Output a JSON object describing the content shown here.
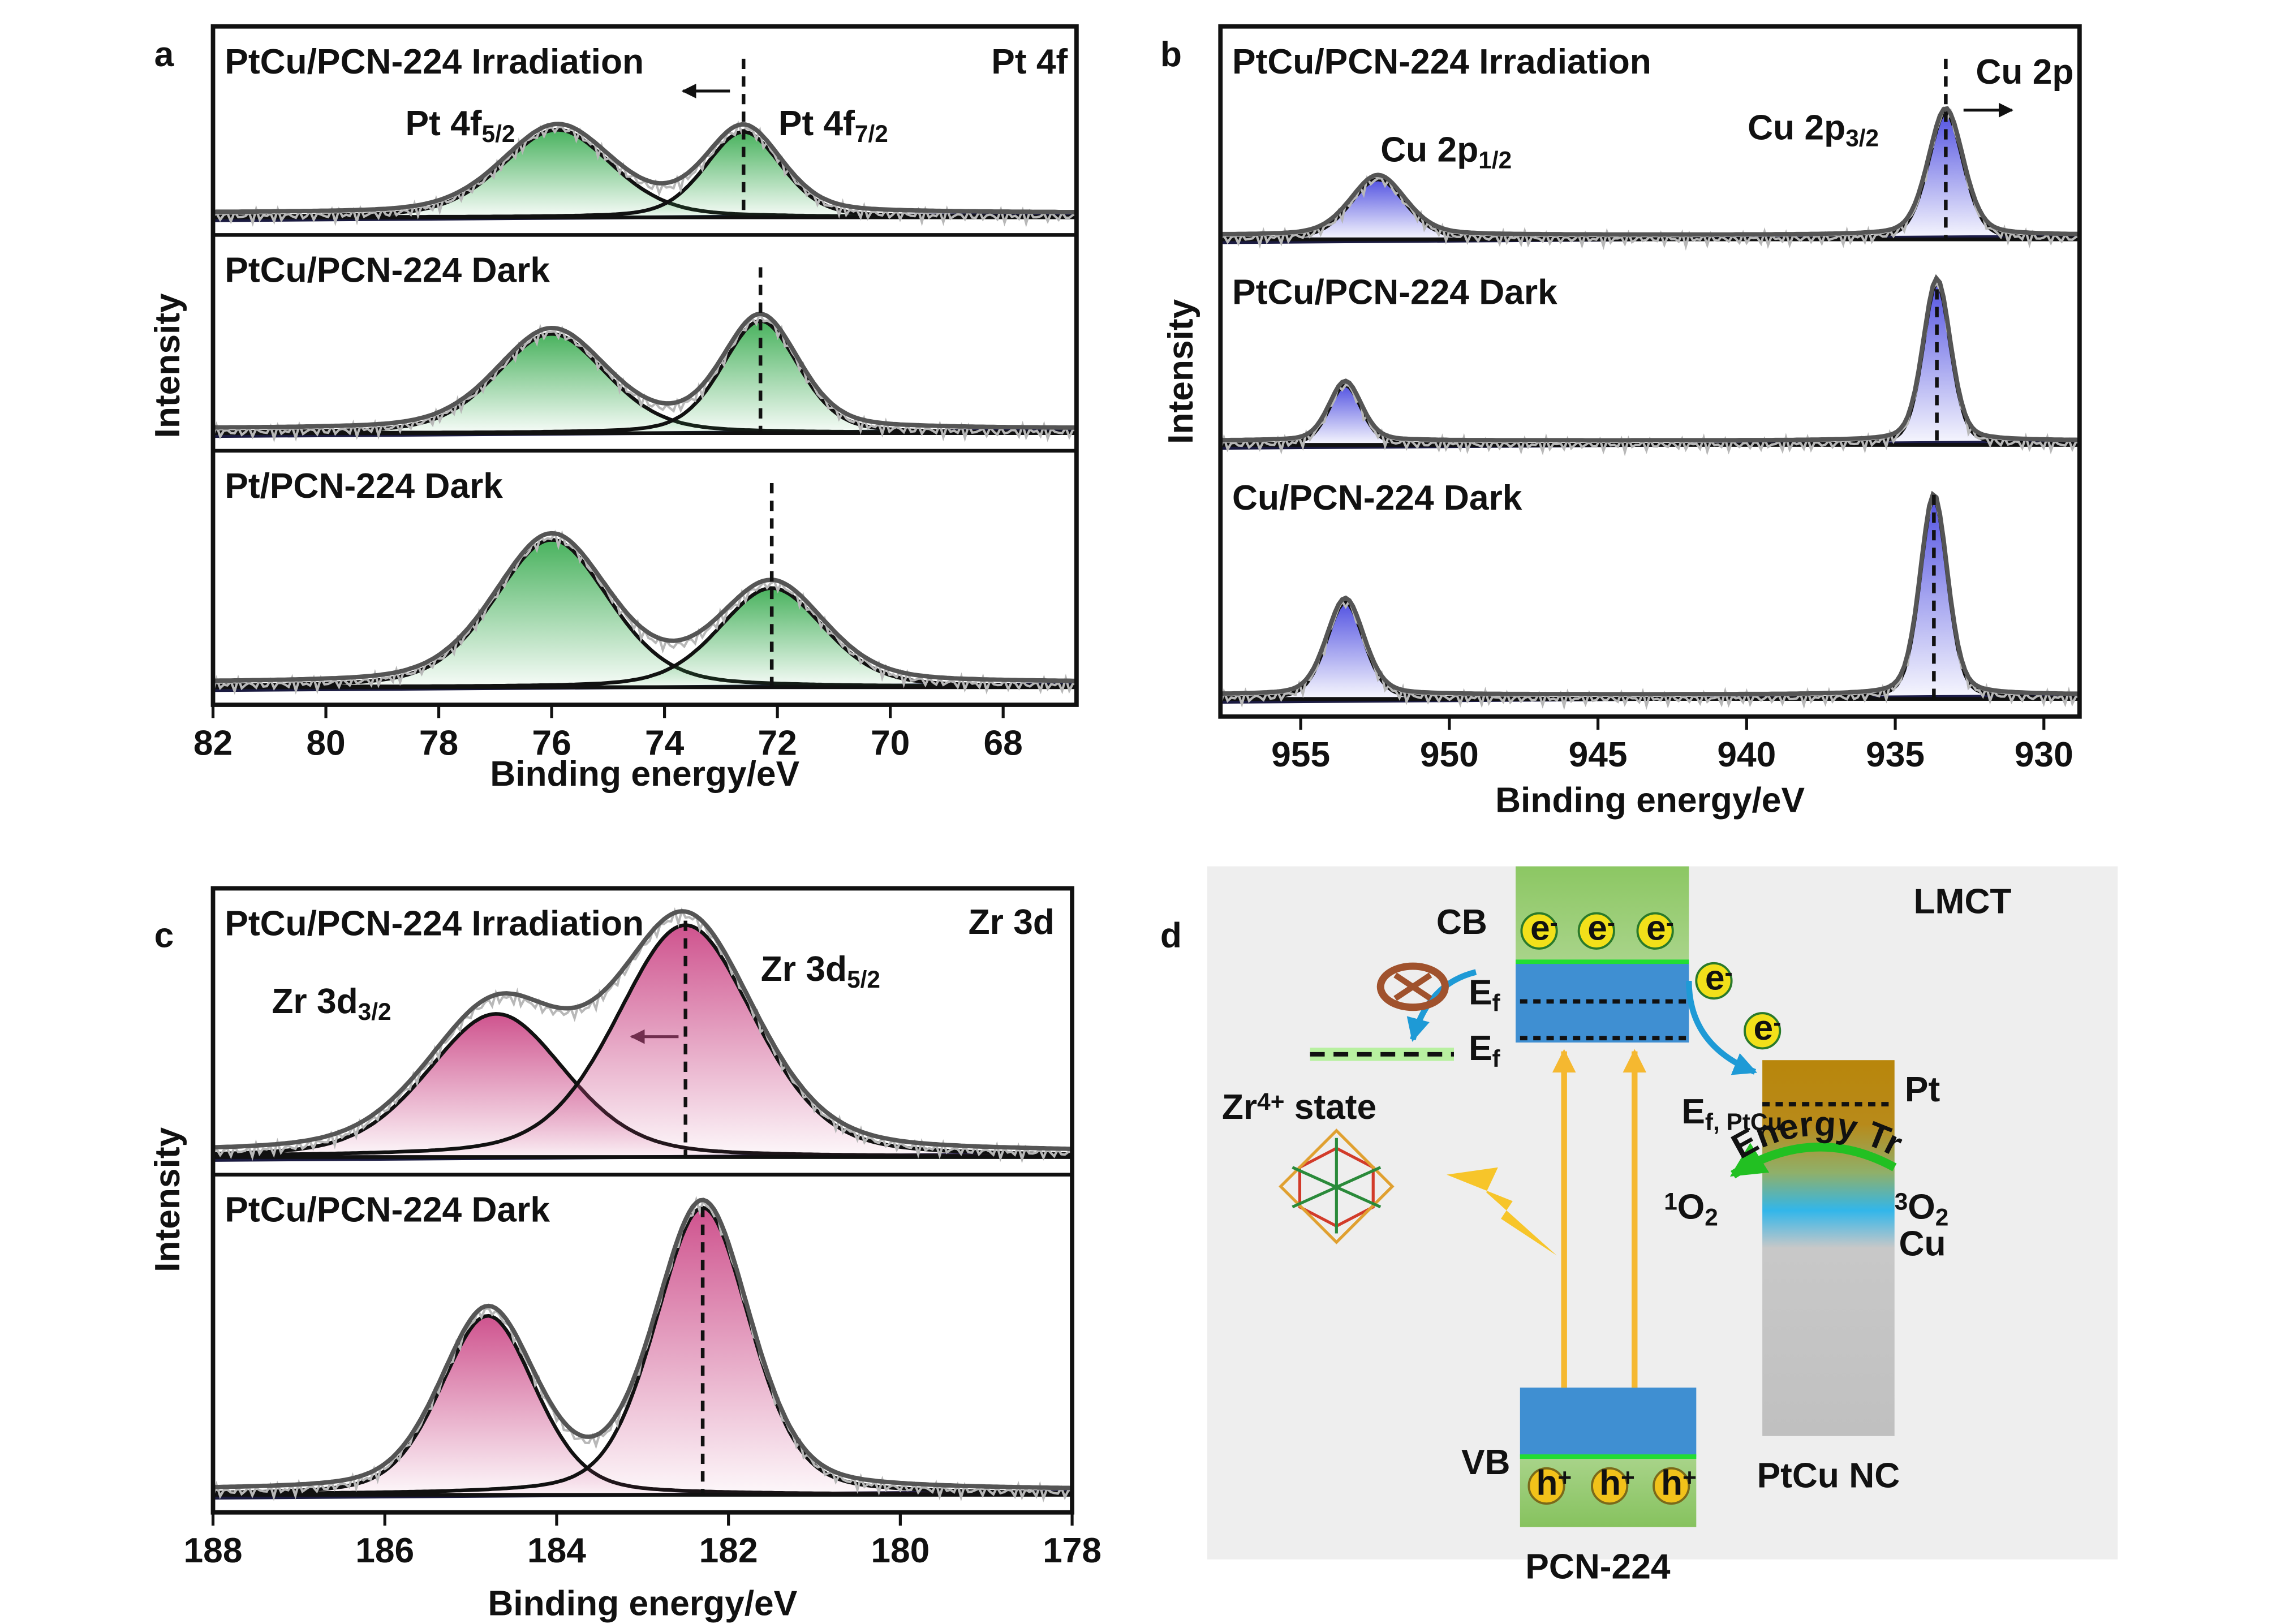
{
  "chart_data": [
    {
      "type": "xps",
      "panel_label": "a",
      "element": "Pt 4f",
      "xlabel": "Binding energy/eV",
      "ylabel": "Intensity",
      "xlim": [
        82,
        66.7
      ],
      "xticks": [
        82,
        80,
        78,
        76,
        74,
        72,
        70,
        68
      ],
      "color": "#3fae55",
      "peak_labels": [
        {
          "text": "Pt 4f",
          "sub": "5/2"
        },
        {
          "text": "Pt 4f",
          "sub": "7/2"
        }
      ],
      "spectra": [
        {
          "label": "PtCu/PCN-224 Irradiation",
          "centers": [
            75.9,
            72.6
          ],
          "heights": [
            0.42,
            0.41
          ],
          "fwhm": [
            2.3,
            1.6
          ]
        },
        {
          "label": "PtCu/PCN-224 Dark",
          "centers": [
            76.0,
            72.3
          ],
          "heights": [
            0.46,
            0.52
          ],
          "fwhm": [
            2.3,
            1.6
          ]
        },
        {
          "label": "Pt/PCN-224 Dark",
          "centers": [
            76.0,
            72.1
          ],
          "heights": [
            0.58,
            0.39
          ],
          "fwhm": [
            2.4,
            2.2
          ]
        }
      ]
    },
    {
      "type": "xps",
      "panel_label": "b",
      "element": "Cu 2p",
      "xlabel": "Binding energy/eV",
      "ylabel": "Intensity",
      "xlim": [
        957.7,
        928.8
      ],
      "xticks": [
        955,
        950,
        945,
        940,
        935,
        930
      ],
      "color": "#4a4ae0",
      "peak_labels": [
        {
          "text": "Cu 2p",
          "sub": "1/2"
        },
        {
          "text": "Cu 2p",
          "sub": "3/2"
        }
      ],
      "spectra": [
        {
          "label": "PtCu/PCN-224 Irradiation",
          "centers": [
            952.4,
            933.3
          ],
          "heights": [
            0.26,
            0.55
          ],
          "fwhm": [
            2.2,
            1.4
          ]
        },
        {
          "label": "PtCu/PCN-224 Dark",
          "centers": [
            953.5,
            933.6
          ],
          "heights": [
            0.29,
            0.79
          ],
          "fwhm": [
            1.3,
            1.1
          ]
        },
        {
          "label": "Cu/PCN-224 Dark",
          "centers": [
            953.5,
            933.7
          ],
          "heights": [
            0.38,
            0.79
          ],
          "fwhm": [
            1.5,
            1.1
          ]
        }
      ]
    },
    {
      "type": "xps",
      "panel_label": "c",
      "element": "Zr 3d",
      "xlabel": "Binding energy/eV",
      "ylabel": "Intensity",
      "xlim": [
        188,
        178
      ],
      "xticks": [
        188,
        186,
        184,
        182,
        180,
        178
      ],
      "color": "#cc4a88",
      "peak_labels": [
        {
          "text": "Zr 3d",
          "sub": "3/2"
        },
        {
          "text": "Zr 3d",
          "sub": "5/2"
        }
      ],
      "spectra": [
        {
          "label": "PtCu/PCN-224 Irradiation",
          "centers": [
            184.7,
            182.5
          ],
          "heights": [
            0.5,
            0.81
          ],
          "fwhm": [
            1.9,
            1.9
          ]
        },
        {
          "label": "PtCu/PCN-224 Dark",
          "centers": [
            184.8,
            182.3
          ],
          "heights": [
            0.53,
            0.85
          ],
          "fwhm": [
            1.3,
            1.3
          ]
        }
      ]
    }
  ],
  "diagram": {
    "panel_label": "d",
    "lmct": "LMCT",
    "cb": "CB",
    "vb": "VB",
    "electron": {
      "base": "e",
      "sup": "-"
    },
    "hole": {
      "base": "h",
      "sup": "+"
    },
    "ef": {
      "base": "E",
      "sub": "f"
    },
    "ef_ptcu": {
      "base": "E",
      "sub": "f, PtCu"
    },
    "zr_state": {
      "base": "Zr",
      "sup": "4+",
      "rest": " state"
    },
    "pt": "Pt",
    "cu": "Cu",
    "singlet": {
      "sup": "1",
      "base": "O",
      "sub": "2"
    },
    "triplet": {
      "sup": "3",
      "base": "O",
      "sub": "2"
    },
    "energy_transfer": "Energy Transfer",
    "ptcu_nc": "PtCu NC",
    "pcn": "PCN-224"
  }
}
